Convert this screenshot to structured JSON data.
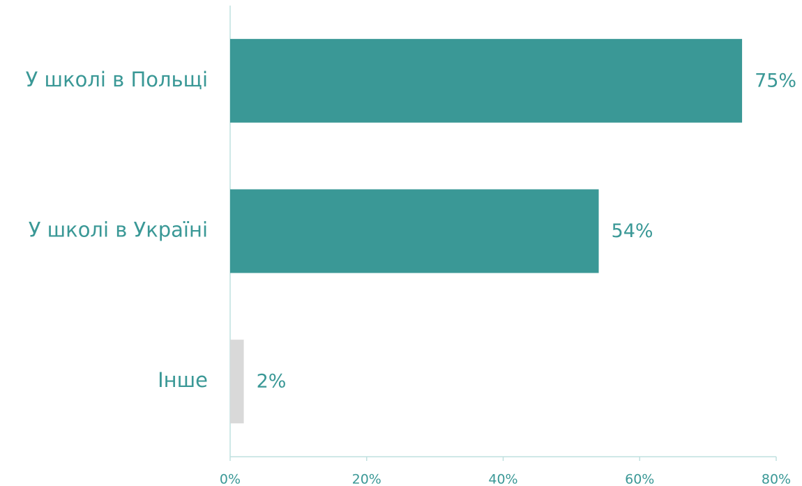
{
  "chart_data": {
    "type": "bar",
    "orientation": "horizontal",
    "categories": [
      "У школі в Польщі",
      "У школі в Україні",
      "Інше"
    ],
    "values": [
      75,
      54,
      2
    ],
    "value_labels": [
      "75%",
      "54%",
      "2%"
    ],
    "colors": [
      "#3a9896",
      "#3a9896",
      "#d9d9d9"
    ],
    "xlim": [
      0,
      80
    ],
    "xticks": [
      {
        "value": 0,
        "label": "0%"
      },
      {
        "value": 20,
        "label": "20%"
      },
      {
        "value": 40,
        "label": "40%"
      },
      {
        "value": 60,
        "label": "60%"
      },
      {
        "value": 80,
        "label": "80%"
      }
    ],
    "grid": false
  }
}
